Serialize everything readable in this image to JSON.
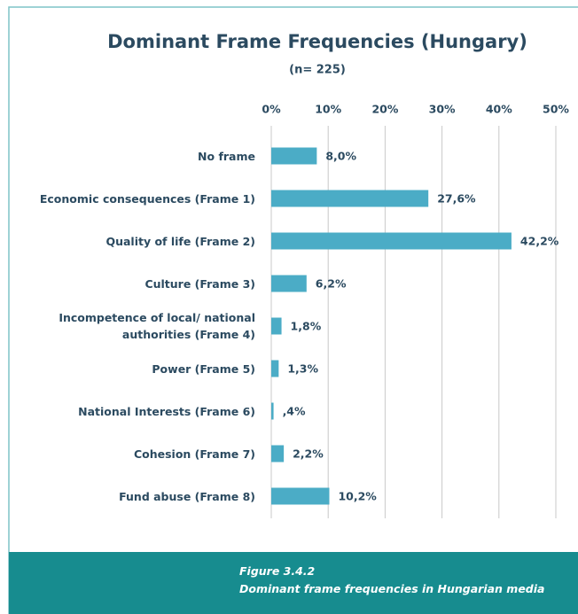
{
  "chart_data": {
    "type": "bar",
    "orientation": "horizontal",
    "title": "Dominant Frame Frequencies (Hungary)",
    "subtitle": "(n= 225)",
    "categories": [
      "No frame",
      "Economic consequences (Frame 1)",
      "Quality of life (Frame 2)",
      "Culture (Frame 3)",
      "Incompetence of local/ national\nauthorities (Frame 4)",
      "Power (Frame 5)",
      "National Interests (Frame 6)",
      "Cohesion (Frame 7)",
      "Fund abuse (Frame 8)"
    ],
    "values": [
      8.0,
      27.6,
      42.2,
      6.2,
      1.8,
      1.3,
      0.4,
      2.2,
      10.2
    ],
    "value_labels": [
      "8,0%",
      "27,6%",
      "42,2%",
      "6,2%",
      "1,8%",
      "1,3%",
      ",4%",
      "2,2%",
      "10,2%"
    ],
    "color": "#4bacc6",
    "xlim": [
      0,
      50
    ],
    "xticks": [
      {
        "value": 0,
        "label": "0%"
      },
      {
        "value": 10,
        "label": "10%"
      },
      {
        "value": 20,
        "label": "20%"
      },
      {
        "value": 30,
        "label": "30%"
      },
      {
        "value": 40,
        "label": "40%"
      },
      {
        "value": 50,
        "label": "50%"
      }
    ],
    "grid": true
  },
  "caption": {
    "label": "Figure 3.4.2",
    "text": "Dominant frame frequencies in Hungarian media"
  }
}
